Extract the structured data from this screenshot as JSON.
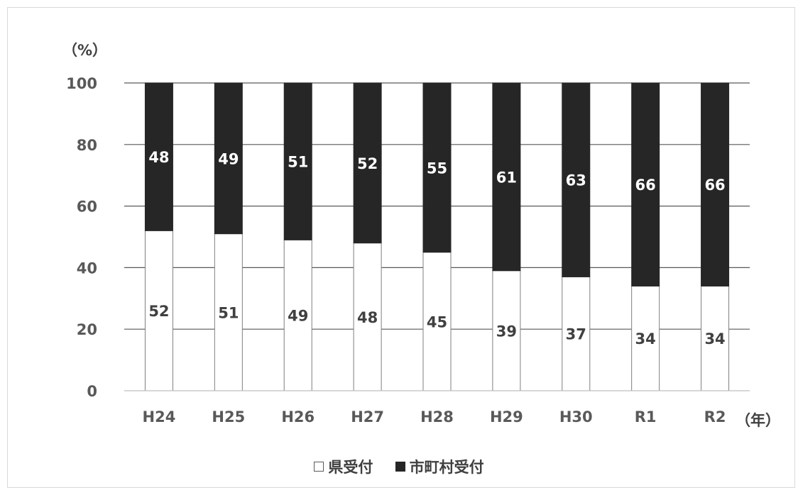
{
  "chart_data": {
    "type": "bar",
    "stacked": true,
    "categories": [
      "H24",
      "H25",
      "H26",
      "H27",
      "H28",
      "H29",
      "H30",
      "R1",
      "R2"
    ],
    "series": [
      {
        "name": "県受付",
        "values": [
          52,
          51,
          49,
          48,
          45,
          39,
          37,
          34,
          34
        ],
        "color": "#ffffff"
      },
      {
        "name": "市町村受付",
        "values": [
          48,
          49,
          51,
          52,
          55,
          61,
          63,
          66,
          66
        ],
        "color": "#262626"
      }
    ],
    "y_unit_label": "（%）",
    "x_unit_label": "（年）",
    "ylim": [
      0,
      100
    ],
    "yticks": [
      0,
      20,
      40,
      60,
      80,
      100
    ],
    "grid": true,
    "legend_position": "bottom"
  }
}
